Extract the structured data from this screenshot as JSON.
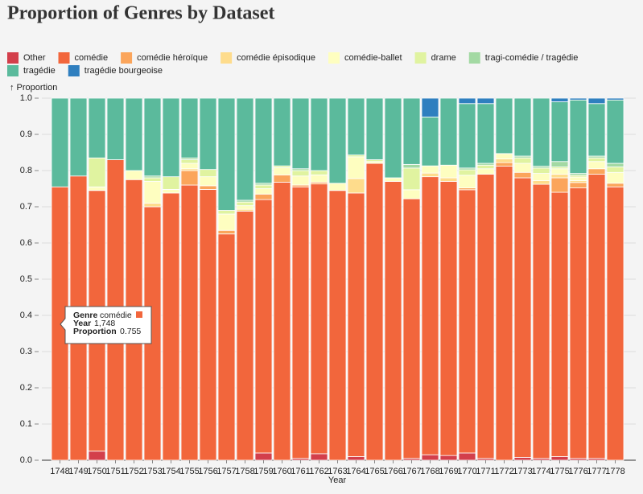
{
  "chart_data": {
    "type": "stacked_bar",
    "title": "Proportion of Genres by Dataset",
    "y_label": "↑ Proportion",
    "x_label": "Year",
    "categories": [
      "1748",
      "1749",
      "1750",
      "1751",
      "1752",
      "1753",
      "1754",
      "1755",
      "1756",
      "1757",
      "1758",
      "1759",
      "1760",
      "1761",
      "1762",
      "1763",
      "1764",
      "1765",
      "1766",
      "1767",
      "1768",
      "1769",
      "1770",
      "1771",
      "1772",
      "1773",
      "1774",
      "1775",
      "1776",
      "1777",
      "1778"
    ],
    "ylim": [
      0,
      1
    ],
    "yticks": [
      {
        "value": 0,
        "label": "0.0"
      },
      0.1,
      0.2,
      0.3,
      0.4,
      0.5,
      0.6,
      0.7,
      0.8,
      0.9,
      {
        "value": 1,
        "label": "1.0"
      }
    ],
    "grid": true,
    "series": [
      {
        "name": "Other",
        "color": "#d33f4b",
        "values": [
          0,
          0,
          0.025,
          0,
          0,
          0,
          0,
          0,
          0,
          0,
          0,
          0.02,
          0,
          0.005,
          0.018,
          0,
          0.01,
          0,
          0,
          0.005,
          0.015,
          0.013,
          0.02,
          0.005,
          0,
          0.008,
          0.005,
          0.01,
          0.005,
          0.005,
          0
        ]
      },
      {
        "name": "comédie",
        "color": "#f2663c",
        "values": [
          0.755,
          0.785,
          0.72,
          0.83,
          0.775,
          0.7,
          0.738,
          0.76,
          0.748,
          0.625,
          0.688,
          0.7,
          0.768,
          0.75,
          0.745,
          0.745,
          0.728,
          0.82,
          0.77,
          0.717,
          0.768,
          0.757,
          0.727,
          0.785,
          0.812,
          0.772,
          0.757,
          0.73,
          0.747,
          0.785,
          0.755
        ]
      },
      {
        "name": "comédie héroïque",
        "color": "#fba55b",
        "values": [
          0,
          0,
          0,
          0,
          0,
          0,
          0,
          0.04,
          0.01,
          0.01,
          0,
          0.015,
          0.02,
          0.005,
          0.005,
          0,
          0,
          0,
          0,
          0,
          0,
          0,
          0.005,
          0,
          0.01,
          0.015,
          0,
          0.04,
          0.015,
          0.015,
          0.01
        ]
      },
      {
        "name": "comédie épisodique",
        "color": "#fedc8c",
        "values": [
          0,
          0,
          0,
          0,
          0,
          0.01,
          0,
          0.005,
          0,
          0,
          0.005,
          0,
          0,
          0,
          0,
          0,
          0.04,
          0,
          0,
          0,
          0.01,
          0.01,
          0,
          0,
          0.01,
          0,
          0.01,
          0.01,
          0.005,
          0,
          0
        ]
      },
      {
        "name": "comédie-ballet",
        "color": "#fefec0",
        "values": [
          0,
          0,
          0.01,
          0,
          0.025,
          0.06,
          0.01,
          0.015,
          0.025,
          0.045,
          0.01,
          0.015,
          0.02,
          0.025,
          0.02,
          0.02,
          0.06,
          0.005,
          0.01,
          0.025,
          0.02,
          0.035,
          0.035,
          0.015,
          0.015,
          0.025,
          0.02,
          0.015,
          0.01,
          0.02,
          0.03
        ]
      },
      {
        "name": "drame",
        "color": "#e0f3a0",
        "values": [
          0,
          0,
          0.08,
          0,
          0,
          0.01,
          0.035,
          0.01,
          0.02,
          0.01,
          0.01,
          0.01,
          0.005,
          0.015,
          0.012,
          0,
          0.005,
          0.005,
          0,
          0.06,
          0,
          0,
          0.015,
          0.01,
          0,
          0.015,
          0.015,
          0.005,
          0.005,
          0.01,
          0.015
        ]
      },
      {
        "name": "tragi-comédie / tragédie",
        "color": "#a3d9a3",
        "values": [
          0,
          0,
          0,
          0,
          0,
          0.005,
          0,
          0.005,
          0,
          0,
          0.005,
          0.005,
          0,
          0.005,
          0,
          0,
          0,
          0,
          0,
          0.01,
          0,
          0,
          0.005,
          0.005,
          0,
          0.005,
          0.005,
          0.015,
          0.005,
          0.005,
          0.01
        ]
      },
      {
        "name": "tragédie",
        "color": "#5bba9c",
        "values": [
          0.245,
          0.215,
          0.165,
          0.17,
          0.2,
          0.215,
          0.217,
          0.165,
          0.197,
          0.31,
          0.282,
          0.235,
          0.187,
          0.195,
          0.2,
          0.235,
          0.157,
          0.17,
          0.22,
          0.183,
          0.135,
          0.185,
          0.178,
          0.165,
          0.153,
          0.16,
          0.188,
          0.165,
          0.203,
          0.145,
          0.175
        ]
      },
      {
        "name": "tragédie bourgeoise",
        "color": "#2f7fbf",
        "values": [
          0,
          0,
          0,
          0,
          0,
          0,
          0,
          0,
          0,
          0,
          0,
          0,
          0,
          0,
          0,
          0,
          0,
          0,
          0,
          0,
          0.052,
          0,
          0.015,
          0.015,
          0,
          0,
          0,
          0.01,
          0.005,
          0.015,
          0.005
        ]
      }
    ],
    "tooltip": {
      "rows": [
        {
          "label": "Genre",
          "value": "comédie"
        },
        {
          "label": "Year",
          "value": "1,748"
        },
        {
          "label": "Proportion",
          "value": "0.755"
        }
      ]
    }
  }
}
